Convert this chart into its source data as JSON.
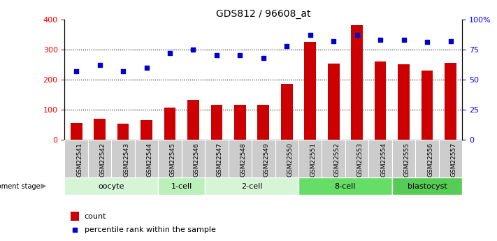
{
  "title": "GDS812 / 96608_at",
  "samples": [
    "GSM22541",
    "GSM22542",
    "GSM22543",
    "GSM22544",
    "GSM22545",
    "GSM22546",
    "GSM22547",
    "GSM22548",
    "GSM22549",
    "GSM22550",
    "GSM22551",
    "GSM22552",
    "GSM22553",
    "GSM22554",
    "GSM22555",
    "GSM22556",
    "GSM22557"
  ],
  "counts": [
    55,
    70,
    53,
    65,
    108,
    132,
    117,
    117,
    117,
    185,
    325,
    252,
    380,
    260,
    250,
    230,
    255
  ],
  "percentiles": [
    57,
    62,
    57,
    60,
    72,
    75,
    70,
    70,
    68,
    78,
    87,
    82,
    87,
    83,
    83,
    81,
    82
  ],
  "stages": [
    {
      "label": "oocyte",
      "start": 0,
      "end": 4,
      "color": "#d6f5d6"
    },
    {
      "label": "1-cell",
      "start": 4,
      "end": 6,
      "color": "#bbf0bb"
    },
    {
      "label": "2-cell",
      "start": 6,
      "end": 10,
      "color": "#d6f5d6"
    },
    {
      "label": "8-cell",
      "start": 10,
      "end": 14,
      "color": "#66dd66"
    },
    {
      "label": "blastocyst",
      "start": 14,
      "end": 17,
      "color": "#55cc55"
    }
  ],
  "bar_color": "#cc0000",
  "scatter_color": "#0000cc",
  "left_ylim": [
    0,
    400
  ],
  "right_ylim": [
    0,
    100
  ],
  "left_yticks": [
    0,
    100,
    200,
    300,
    400
  ],
  "right_yticks": [
    0,
    25,
    50,
    75,
    100
  ],
  "right_yticklabels": [
    "0",
    "25",
    "50",
    "75",
    "100%"
  ],
  "grid_values": [
    100,
    200,
    300
  ],
  "background_color": "#ffffff",
  "tick_bg_color": "#cccccc"
}
